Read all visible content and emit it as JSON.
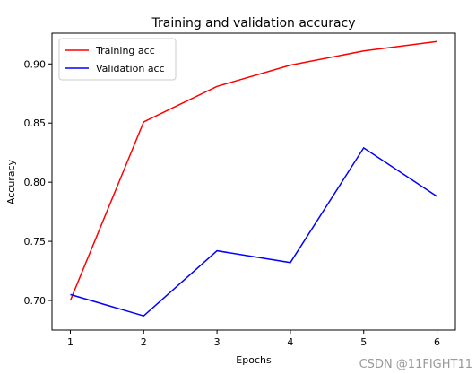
{
  "chart_data": {
    "type": "line",
    "title": "Training and validation accuracy",
    "xlabel": "Epochs",
    "ylabel": "Accuracy",
    "x": [
      1,
      2,
      3,
      4,
      5,
      6
    ],
    "xticks": [
      "1",
      "2",
      "3",
      "4",
      "5",
      "6"
    ],
    "yticks": [
      "0.70",
      "0.75",
      "0.80",
      "0.85",
      "0.90"
    ],
    "xlim": [
      0.75,
      6.25
    ],
    "ylim": [
      0.675,
      0.926
    ],
    "grid": false,
    "legend_position": "upper-left",
    "series": [
      {
        "name": "Training acc",
        "color": "#ff0000",
        "values": [
          0.7,
          0.851,
          0.881,
          0.899,
          0.911,
          0.919
        ]
      },
      {
        "name": "Validation acc",
        "color": "#0000ff",
        "values": [
          0.705,
          0.687,
          0.742,
          0.732,
          0.829,
          0.788
        ]
      }
    ]
  },
  "watermark": "CSDN @11FIGHT11"
}
